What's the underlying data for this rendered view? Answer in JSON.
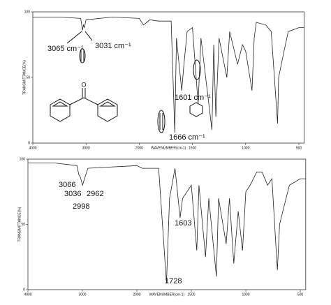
{
  "chart_data": [
    {
      "type": "line",
      "x_label": "WAVENUMBER(cm-1)",
      "y_label": "TRANSMITTANCE(%)",
      "xlim": [
        4000,
        450
      ],
      "xticks": [
        4000,
        3000,
        2000,
        1500,
        1000,
        500
      ],
      "ylim": [
        0,
        100
      ],
      "yticks": [
        0,
        50,
        100
      ],
      "annotations": [
        "3065 cm⁻¹",
        "3031 cm⁻¹",
        "1601 cm⁻¹",
        "1666 cm⁻¹"
      ],
      "series": [
        {
          "color": "#222222",
          "x": [
            4000,
            3500,
            3100,
            3065,
            3050,
            3031,
            3000,
            2500,
            2000,
            1960,
            1900,
            1820,
            1700,
            1666,
            1650,
            1601,
            1580,
            1550,
            1500,
            1447,
            1420,
            1317,
            1300,
            1280,
            1250,
            1177,
            1150,
            1076,
            1030,
            1000,
            940,
            920,
            900,
            811,
            760,
            700,
            690,
            640,
            600,
            500,
            450
          ],
          "values": [
            96,
            96,
            95,
            86,
            90,
            88,
            94,
            96,
            95,
            90,
            94,
            93,
            93,
            8,
            80,
            40,
            60,
            85,
            88,
            30,
            80,
            10,
            75,
            20,
            80,
            50,
            85,
            60,
            75,
            70,
            40,
            80,
            92,
            90,
            85,
            15,
            50,
            70,
            85,
            88,
            88
          ]
        }
      ]
    },
    {
      "type": "line",
      "x_label": "WAVENUMBER(cm-1)",
      "y_label": "TRANSMITTANCE(%)",
      "xlim": [
        4000,
        450
      ],
      "xticks": [
        4000,
        3000,
        2000,
        1500,
        1000,
        500
      ],
      "ylim": [
        0,
        100
      ],
      "yticks": [
        0,
        50,
        100
      ],
      "annotations": [
        "3066",
        "3036",
        "2962",
        "2998",
        "1603",
        "1728"
      ],
      "series": [
        {
          "color": "#222222",
          "x": [
            4000,
            3500,
            3100,
            3066,
            3036,
            2998,
            2962,
            2900,
            2000,
            1950,
            1800,
            1728,
            1700,
            1650,
            1603,
            1580,
            1500,
            1450,
            1430,
            1370,
            1340,
            1270,
            1250,
            1180,
            1150,
            1110,
            1070,
            1030,
            1000,
            960,
            900,
            850,
            800,
            760,
            710,
            690,
            660,
            600,
            500,
            450
          ],
          "values": [
            97,
            97,
            95,
            88,
            86,
            80,
            85,
            93,
            95,
            93,
            93,
            5,
            70,
            93,
            55,
            70,
            80,
            30,
            80,
            25,
            70,
            10,
            70,
            35,
            70,
            20,
            60,
            30,
            75,
            80,
            90,
            90,
            80,
            85,
            15,
            50,
            60,
            80,
            85,
            85
          ]
        }
      ]
    }
  ]
}
